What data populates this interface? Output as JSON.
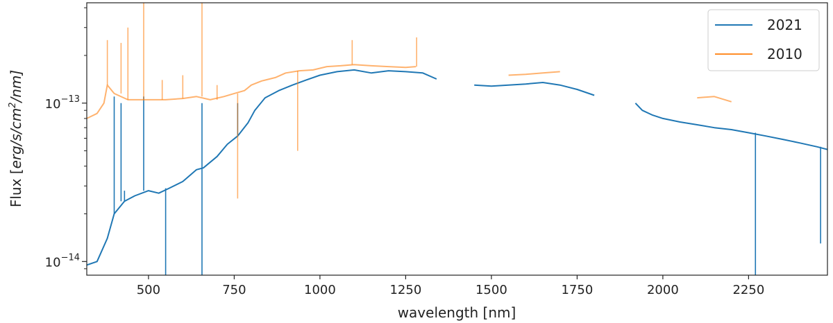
{
  "chart_data": {
    "type": "line",
    "title": "",
    "xlabel": "wavelength [nm]",
    "ylabel": "Flux [erg/s/cm^2/nm]",
    "ylabel_parts": {
      "prefix": "Flux [",
      "unit": "erg/s/cm",
      "exp": "2",
      "suffix": "/nm]"
    },
    "xlim": [
      320,
      2480
    ],
    "ylim": [
      8.2e-15,
      4.3e-13
    ],
    "yscale": "log",
    "x_ticks": [
      500,
      750,
      1000,
      1250,
      1500,
      1750,
      2000,
      2250
    ],
    "x_tick_labels": [
      "500",
      "750",
      "1000",
      "1250",
      "1500",
      "1750",
      "2000",
      "2250"
    ],
    "y_ticks": [
      {
        "value": 1e-13,
        "base": "10",
        "exp": "−13"
      },
      {
        "value": 1e-14,
        "base": "10",
        "exp": "−14"
      }
    ],
    "legend_position": "top-right",
    "grid": false,
    "series": [
      {
        "name": "2021",
        "color": "#1f77b4",
        "segments": [
          [
            [
              320,
              9.5e-15
            ],
            [
              350,
              1e-14
            ],
            [
              380,
              1.4e-14
            ],
            [
              400,
              2e-14
            ],
            [
              430,
              2.4e-14
            ],
            [
              460,
              2.6e-14
            ],
            [
              500,
              2.8e-14
            ],
            [
              530,
              2.7e-14
            ],
            [
              560,
              2.9e-14
            ],
            [
              600,
              3.2e-14
            ],
            [
              640,
              3.8e-14
            ],
            [
              660,
              3.9e-14
            ],
            [
              700,
              4.6e-14
            ],
            [
              730,
              5.5e-14
            ],
            [
              760,
              6.2e-14
            ],
            [
              790,
              7.5e-14
            ],
            [
              810,
              9e-14
            ],
            [
              840,
              1.08e-13
            ],
            [
              880,
              1.2e-13
            ],
            [
              920,
              1.3e-13
            ],
            [
              960,
              1.4e-13
            ],
            [
              1000,
              1.5e-13
            ],
            [
              1050,
              1.58e-13
            ],
            [
              1100,
              1.62e-13
            ],
            [
              1150,
              1.55e-13
            ],
            [
              1200,
              1.6e-13
            ],
            [
              1250,
              1.58e-13
            ],
            [
              1300,
              1.55e-13
            ],
            [
              1340,
              1.42e-13
            ]
          ],
          [
            [
              1450,
              1.3e-13
            ],
            [
              1500,
              1.28e-13
            ],
            [
              1550,
              1.3e-13
            ],
            [
              1600,
              1.32e-13
            ],
            [
              1650,
              1.35e-13
            ],
            [
              1700,
              1.3e-13
            ],
            [
              1750,
              1.22e-13
            ],
            [
              1800,
              1.12e-13
            ]
          ],
          [
            [
              1920,
              1e-13
            ],
            [
              1940,
              9e-14
            ],
            [
              1970,
              8.4e-14
            ],
            [
              2000,
              8e-14
            ],
            [
              2050,
              7.6e-14
            ],
            [
              2100,
              7.3e-14
            ],
            [
              2150,
              7e-14
            ],
            [
              2200,
              6.8e-14
            ],
            [
              2250,
              6.5e-14
            ],
            [
              2300,
              6.2e-14
            ],
            [
              2350,
              5.9e-14
            ],
            [
              2400,
              5.6e-14
            ],
            [
              2450,
              5.3e-14
            ],
            [
              2480,
              5.1e-14
            ]
          ]
        ],
        "spikes": [
          [
            400,
            1.1e-13
          ],
          [
            420,
            1e-13
          ],
          [
            430,
            2.8e-14
          ],
          [
            486,
            1.1e-13
          ],
          [
            550,
            7e-15
          ],
          [
            656,
            1e-13
          ],
          [
            656,
            7e-15
          ],
          [
            760,
            1e-13
          ],
          [
            2270,
            5e-15
          ],
          [
            2460,
            1.3e-14
          ]
        ]
      },
      {
        "name": "2010",
        "color": "#ff7f0e",
        "opacity": 0.6,
        "segments": [
          [
            [
              320,
              8e-14
            ],
            [
              350,
              8.6e-14
            ],
            [
              370,
              1e-13
            ],
            [
              380,
              1.3e-13
            ],
            [
              400,
              1.15e-13
            ],
            [
              440,
              1.05e-13
            ],
            [
              500,
              1.05e-13
            ],
            [
              550,
              1.05e-13
            ],
            [
              600,
              1.07e-13
            ],
            [
              640,
              1.1e-13
            ],
            [
              680,
              1.05e-13
            ],
            [
              720,
              1.1e-13
            ],
            [
              750,
              1.15e-13
            ],
            [
              780,
              1.2e-13
            ],
            [
              800,
              1.3e-13
            ],
            [
              830,
              1.38e-13
            ],
            [
              870,
              1.45e-13
            ],
            [
              900,
              1.55e-13
            ],
            [
              940,
              1.6e-13
            ],
            [
              980,
              1.62e-13
            ],
            [
              1020,
              1.7e-13
            ],
            [
              1060,
              1.72e-13
            ],
            [
              1100,
              1.75e-13
            ],
            [
              1150,
              1.72e-13
            ],
            [
              1200,
              1.7e-13
            ],
            [
              1250,
              1.68e-13
            ],
            [
              1280,
              1.7e-13
            ]
          ],
          [
            [
              1550,
              1.5e-13
            ],
            [
              1600,
              1.52e-13
            ],
            [
              1650,
              1.55e-13
            ],
            [
              1700,
              1.58e-13
            ]
          ],
          [
            [
              2100,
              1.08e-13
            ],
            [
              2150,
              1.1e-13
            ],
            [
              2200,
              1.02e-13
            ]
          ]
        ],
        "spikes": [
          [
            380,
            2.5e-13
          ],
          [
            420,
            2.4e-13
          ],
          [
            440,
            3e-13
          ],
          [
            486,
            4.3e-13
          ],
          [
            540,
            1.4e-13
          ],
          [
            600,
            1.5e-13
          ],
          [
            656,
            4.3e-13
          ],
          [
            700,
            1.3e-13
          ],
          [
            760,
            2.5e-14
          ],
          [
            935,
            5e-14
          ],
          [
            1094,
            2.5e-13
          ],
          [
            1282,
            2.6e-13
          ]
        ]
      }
    ]
  }
}
